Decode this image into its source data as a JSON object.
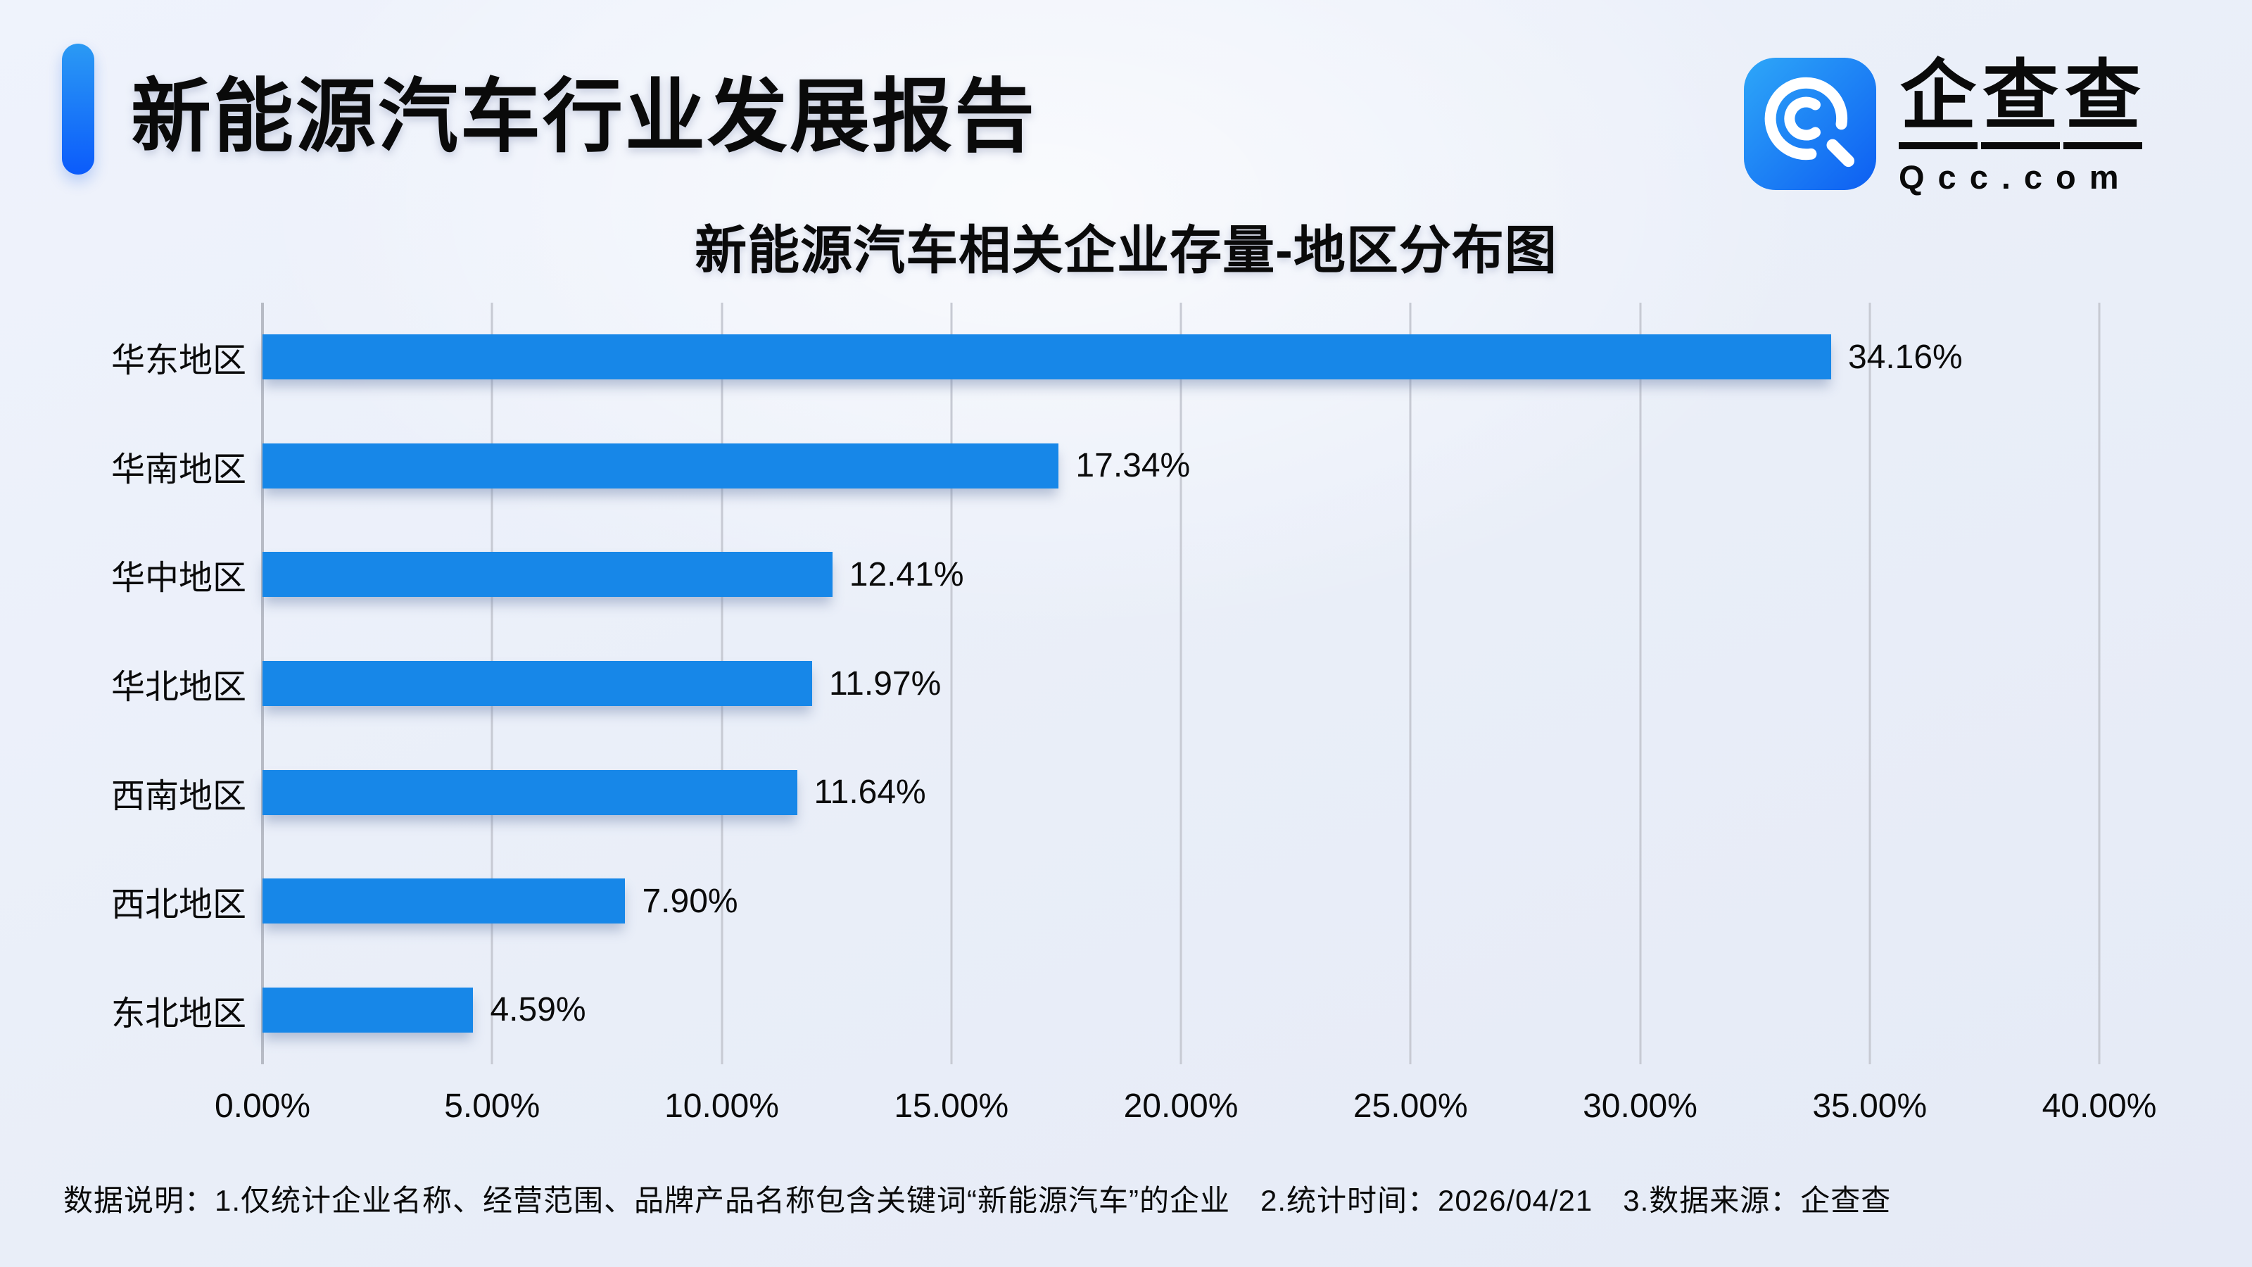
{
  "header": {
    "title": "新能源汽车行业发展报告",
    "accent_color_top": "#2b9af4",
    "accent_color_bottom": "#0b5bfb"
  },
  "logo": {
    "name": "企查查",
    "domain": "Qcc.com",
    "icon_name": "qcc-magnifier-icon",
    "icon_color_top": "#2ea7f8",
    "icon_color_bottom": "#0d5ef2"
  },
  "chart_data": {
    "type": "bar",
    "orientation": "horizontal",
    "title": "新能源汽车相关企业存量-地区分布图",
    "categories": [
      "华东地区",
      "华南地区",
      "华中地区",
      "华北地区",
      "西南地区",
      "西北地区",
      "东北地区"
    ],
    "values": [
      34.16,
      17.34,
      12.41,
      11.97,
      11.64,
      7.9,
      4.59
    ],
    "value_labels": [
      "34.16%",
      "17.34%",
      "12.41%",
      "11.97%",
      "11.64%",
      "7.90%",
      "4.59%"
    ],
    "x_ticks": [
      "0.00%",
      "5.00%",
      "10.00%",
      "15.00%",
      "20.00%",
      "25.00%",
      "30.00%",
      "35.00%",
      "40.00%"
    ],
    "xlim": [
      0,
      40
    ],
    "bar_color": "#1787e8",
    "grid": true,
    "legend_position": "none",
    "xlabel": "",
    "ylabel": ""
  },
  "footer": {
    "note": "数据说明：1.仅统计企业名称、经营范围、品牌产品名称包含关键词“新能源汽车”的企业　2.统计时间：2026/04/21　3.数据来源：企查查"
  }
}
